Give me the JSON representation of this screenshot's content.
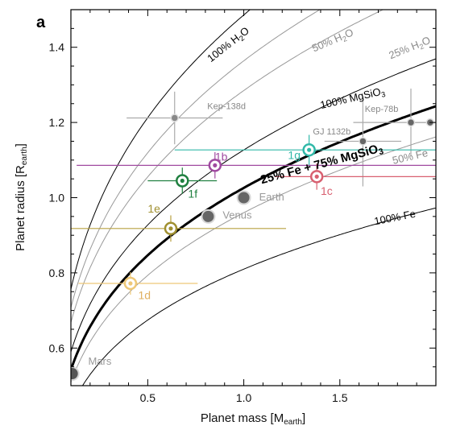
{
  "chart_data": {
    "type": "scatter",
    "panel_label": "a",
    "xlabel": "Planet mass [M",
    "xlabel_sub": "earth",
    "xlabel_end": "]",
    "ylabel": "Planet radius [R",
    "ylabel_sub": "earth",
    "ylabel_end": "]",
    "xlim": [
      0.1,
      2.0
    ],
    "ylim": [
      0.5,
      1.5
    ],
    "xticks": [
      0.5,
      1.0,
      1.5
    ],
    "xtick_labels": [
      "0.5",
      "1.0",
      "1.5"
    ],
    "yticks": [
      0.6,
      0.8,
      1.0,
      1.2,
      1.4
    ],
    "ytick_labels": [
      "0.6",
      "0.8",
      "1.0",
      "1.2",
      "1.4"
    ],
    "grid": false,
    "curves": [
      {
        "label": "100% H",
        "sub": "2",
        "tail": "O",
        "color": "#000000",
        "width": 1,
        "k": 1.486,
        "p": 0.293,
        "label_at": [
          0.93,
          1.4
        ],
        "rot": -38
      },
      {
        "label": "50% H",
        "sub": "2",
        "tail": "O",
        "color": "#999999",
        "width": 1,
        "k": 1.364,
        "p": 0.285,
        "label_at": [
          1.47,
          1.41
        ],
        "rot": -23
      },
      {
        "label": "25% H",
        "sub": "2",
        "tail": "O",
        "color": "#999999",
        "width": 1,
        "k": 1.285,
        "p": 0.284,
        "label_at": [
          1.87,
          1.39
        ],
        "rot": -22
      },
      {
        "label": "100% MgSiO",
        "sub": "3",
        "tail": "",
        "color": "#000000",
        "width": 1,
        "k": 1.127,
        "p": 0.281,
        "label_at": [
          1.57,
          1.256
        ],
        "rot": -13
      },
      {
        "label": "25% Fe + 75% MgSiO",
        "sub": "3",
        "tail": "",
        "color": "#000000",
        "width": 3,
        "k": 1.026,
        "p": 0.277,
        "label_at": [
          1.41,
          1.08
        ],
        "rot": -15,
        "bold": true
      },
      {
        "label": "50% Fe",
        "sub": "",
        "tail": "",
        "color": "#999999",
        "width": 1,
        "k": 0.96,
        "p": 0.275,
        "label_at": [
          1.87,
          1.1
        ],
        "rot": -13
      },
      {
        "label": "100% Fe",
        "sub": "",
        "tail": "",
        "color": "#000000",
        "width": 1,
        "k": 0.81,
        "p": 0.264,
        "label_at": [
          1.79,
          0.938
        ],
        "rot": -11
      }
    ],
    "series": [
      {
        "name": "Kep-138d",
        "x": 0.64,
        "y": 1.212,
        "xerr": [
          0.25,
          0.25
        ],
        "yerr": [
          0.07,
          0.07
        ],
        "color": "#888888",
        "size": "small",
        "err_color": "#aaaaaa",
        "label_at": [
          0.81,
          1.236
        ],
        "label_color": "#888888",
        "label_size": 11
      },
      {
        "name": "GJ 1132b",
        "x": 1.62,
        "y": 1.15,
        "xerr": [
          0.2,
          0.2
        ],
        "yerr": [
          0.12,
          0.12
        ],
        "color": "#666666",
        "size": "small",
        "err_color": "#aaaaaa",
        "label_at": [
          1.36,
          1.168
        ],
        "label_color": "#888888",
        "label_size": 11
      },
      {
        "name": "Kep-78b",
        "x": 1.87,
        "y": 1.2,
        "xerr": [
          0.3,
          0.3
        ],
        "yerr": [
          0.09,
          0.09
        ],
        "color": "#666666",
        "size": "small",
        "err_color": "#aaaaaa",
        "label_at": [
          1.63,
          1.228
        ],
        "label_color": "#888888",
        "label_size": 11
      },
      {
        "name": "",
        "x": 1.97,
        "y": 1.2,
        "xerr": [
          0.1,
          0.1
        ],
        "yerr": [
          0.0,
          0.0
        ],
        "color": "#666666",
        "size": "small",
        "err_color": "#aaaaaa",
        "label_at": [
          1.97,
          1.2
        ],
        "label_color": "#888888",
        "label_size": 11
      },
      {
        "name": "1b",
        "x": 0.85,
        "y": 1.086,
        "xerr": [
          0.72,
          1.15
        ],
        "yerr": [
          0.035,
          0.035
        ],
        "color": "#a04aa0",
        "size": "ring",
        "err_color": "#a04aa0",
        "label_at": [
          0.85,
          1.098
        ],
        "label_color": "#a04aa0",
        "label_size": 14
      },
      {
        "name": "1c",
        "x": 1.38,
        "y": 1.056,
        "xerr": [
          0.22,
          0.62
        ],
        "yerr": [
          0.035,
          0.035
        ],
        "color": "#d86070",
        "size": "ring",
        "err_color": "#d86070",
        "label_at": [
          1.4,
          1.008
        ],
        "label_color": "#d86070",
        "label_size": 14
      },
      {
        "name": "1d",
        "x": 0.41,
        "y": 0.772,
        "xerr": [
          0.27,
          0.35
        ],
        "yerr": [
          0.03,
          0.03
        ],
        "color": "#eec878",
        "size": "ring",
        "err_color": "#eec878",
        "label_at": [
          0.45,
          0.73
        ],
        "label_color": "#e0b060",
        "label_size": 14
      },
      {
        "name": "1e",
        "x": 0.62,
        "y": 0.918,
        "xerr": [
          0.55,
          0.6
        ],
        "yerr": [
          0.035,
          0.035
        ],
        "color": "#a09030",
        "size": "ring",
        "err_color": "#b8a040",
        "label_at": [
          0.5,
          0.96
        ],
        "label_color": "#a09030",
        "label_size": 14
      },
      {
        "name": "1f",
        "x": 0.68,
        "y": 1.045,
        "xerr": [
          0.18,
          0.18
        ],
        "yerr": [
          0.035,
          0.035
        ],
        "color": "#208040",
        "size": "ring",
        "err_color": "#208040",
        "label_at": [
          0.71,
          1.0
        ],
        "label_color": "#208040",
        "label_size": 14
      },
      {
        "name": "1g",
        "x": 1.34,
        "y": 1.127,
        "xerr": [
          0.7,
          0.8
        ],
        "yerr": [
          0.04,
          0.04
        ],
        "color": "#30b8a8",
        "size": "ring",
        "err_color": "#30b8a8",
        "label_at": [
          1.23,
          1.103
        ],
        "label_color": "#30b8a8",
        "label_size": 14
      },
      {
        "name": "Earth",
        "x": 1.0,
        "y": 1.0,
        "xerr": [
          0,
          0
        ],
        "yerr": [
          0,
          0
        ],
        "color": "#666666",
        "size": "large",
        "err_color": "#aaaaaa",
        "label_at": [
          1.08,
          0.993
        ],
        "label_color": "#999999",
        "label_size": 13
      },
      {
        "name": "Venus",
        "x": 0.815,
        "y": 0.95,
        "xerr": [
          0,
          0
        ],
        "yerr": [
          0,
          0
        ],
        "color": "#666666",
        "size": "large",
        "err_color": "#aaaaaa",
        "label_at": [
          0.89,
          0.944
        ],
        "label_color": "#999999",
        "label_size": 13
      },
      {
        "name": "Mars",
        "x": 0.107,
        "y": 0.532,
        "xerr": [
          0,
          0
        ],
        "yerr": [
          0,
          0
        ],
        "color": "#555555",
        "size": "large",
        "err_color": "#aaaaaa",
        "label_at": [
          0.19,
          0.556
        ],
        "label_color": "#999999",
        "label_size": 13
      }
    ]
  }
}
